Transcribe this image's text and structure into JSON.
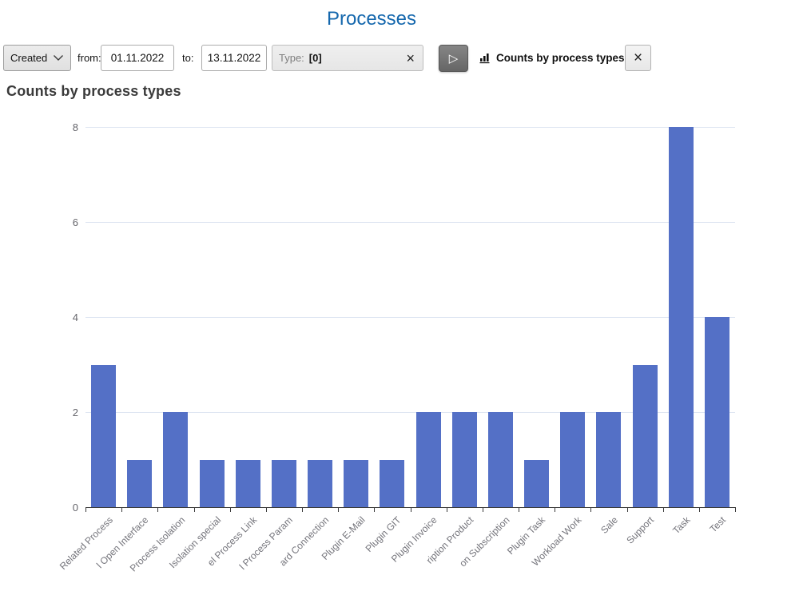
{
  "page": {
    "title": "Processes"
  },
  "toolbar": {
    "field_select": {
      "value": "Created"
    },
    "from_label": "from:",
    "from_value": "01.11.2022",
    "to_label": "to:",
    "to_value": "13.11.2022",
    "type_label": "Type:",
    "type_value": "[0]",
    "clear_type_icon": "×",
    "run_icon": "▷",
    "chart_view_label": "Counts by process types",
    "close_icon": "×"
  },
  "chart": {
    "heading": "Counts by process types"
  },
  "chart_data": {
    "type": "bar",
    "title": "Counts by process types",
    "categories": [
      "Related Process",
      "l Open Interface",
      "Process Isolation",
      "Isolation special",
      "el Process Link",
      "l Process Param",
      "ard Connection",
      "Plugin E-Mail",
      "Plugin GIT",
      "Plugin Invoice",
      "ription Product",
      "on Subscription",
      "Plugin Task",
      "Workload Work",
      "Sale",
      "Support",
      "Task",
      "Test"
    ],
    "values": [
      3,
      1,
      2,
      1,
      1,
      1,
      1,
      1,
      1,
      2,
      2,
      2,
      1,
      2,
      2,
      3,
      8,
      4
    ],
    "xlabel": "",
    "ylabel": "",
    "ylim": [
      0,
      8
    ],
    "yticks": [
      0,
      2,
      4,
      6,
      8
    ],
    "x_label_rotation": -45,
    "grid": true,
    "legend_position": "none",
    "bar_color": "#5470c6",
    "grid_color": "#dfe6f2",
    "axis_color": "#3a3a3a",
    "y_tick_color": "#65656b",
    "x_tick_color": "#74747b"
  }
}
